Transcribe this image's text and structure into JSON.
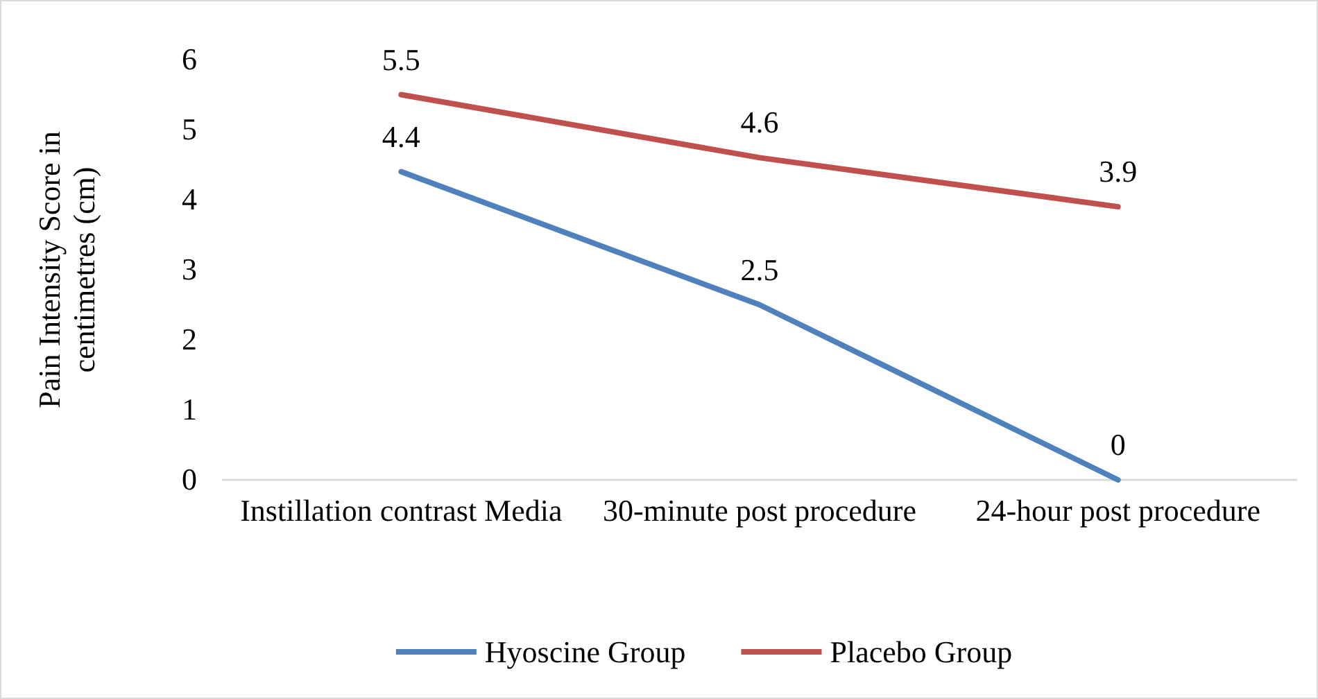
{
  "chart_data": {
    "type": "line",
    "ylabel": "Pain Intensity Score in centimetres (cm)",
    "categories": [
      "Instillation contrast Media",
      "30-minute post procedure",
      "24-hour post procedure"
    ],
    "series": [
      {
        "name": "Hyoscine Group",
        "color": "#4f81bd",
        "values": [
          4.4,
          2.5,
          0
        ]
      },
      {
        "name": "Placebo Group",
        "color": "#c0504d",
        "values": [
          5.5,
          4.6,
          3.9
        ]
      }
    ],
    "ylim": [
      0,
      6
    ],
    "yticks": [
      0,
      1,
      2,
      3,
      4,
      5,
      6
    ],
    "data_labels": true,
    "legend": "bottom",
    "grid": false,
    "marker": "none",
    "line_style": "solid"
  }
}
